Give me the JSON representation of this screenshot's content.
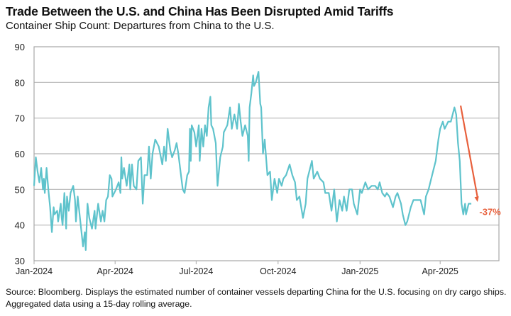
{
  "chart_data": {
    "type": "line",
    "title": "Trade Between the U.S. and China Has Been Disrupted Amid Tariffs",
    "subtitle": "Container Ship Count: Departures from China to the U.S.",
    "xlabel": "",
    "ylabel": "",
    "xlim": [
      "2024-01-01",
      "2025-06-06"
    ],
    "ylim": [
      30,
      90
    ],
    "yticks": [
      30,
      40,
      50,
      60,
      70,
      80,
      90
    ],
    "xticks": [
      {
        "date": "2024-01-01",
        "label": "Jan-2024"
      },
      {
        "date": "2024-04-01",
        "label": "Apr-2024"
      },
      {
        "date": "2024-07-01",
        "label": "Jul-2024"
      },
      {
        "date": "2024-10-01",
        "label": "Oct-2024"
      },
      {
        "date": "2025-01-01",
        "label": "Jan-2025"
      },
      {
        "date": "2025-04-01",
        "label": "Apr-2025"
      }
    ],
    "grid": "horizontal",
    "line_color": "#5fc3cc",
    "annotation": {
      "label": "-37%",
      "color": "#e8603c",
      "arrow_from": {
        "x": "2025-04-24",
        "y": 73.5
      },
      "arrow_to": {
        "x": "2025-05-13",
        "y": 46.5
      },
      "label_at": {
        "x": "2025-05-15",
        "y": 43.8
      }
    },
    "series": [
      {
        "x": [
          "2024-01-01",
          "2024-01-03",
          "2024-01-05",
          "2024-01-07",
          "2024-01-09",
          "2024-01-11",
          "2024-01-12",
          "2024-01-13",
          "2024-01-15",
          "2024-01-17",
          "2024-01-19",
          "2024-01-21",
          "2024-01-23",
          "2024-01-24",
          "2024-01-27",
          "2024-01-28",
          "2024-01-31",
          "2024-02-01",
          "2024-02-02",
          "2024-02-04",
          "2024-02-06",
          "2024-02-07",
          "2024-02-09",
          "2024-02-11",
          "2024-02-14",
          "2024-02-16",
          "2024-02-17",
          "2024-02-19",
          "2024-02-22",
          "2024-02-25",
          "2024-02-27",
          "2024-02-28",
          "2024-03-01",
          "2024-03-03",
          "2024-03-06",
          "2024-03-09",
          "2024-03-10",
          "2024-03-13",
          "2024-03-16",
          "2024-03-18",
          "2024-03-20",
          "2024-03-22",
          "2024-03-24",
          "2024-03-26",
          "2024-03-28",
          "2024-03-29",
          "2024-03-31",
          "2024-04-02",
          "2024-04-05",
          "2024-04-07",
          "2024-04-08",
          "2024-04-09",
          "2024-04-11",
          "2024-04-14",
          "2024-04-17",
          "2024-04-18",
          "2024-04-20",
          "2024-04-22",
          "2024-04-25",
          "2024-04-27",
          "2024-04-30",
          "2024-05-02",
          "2024-05-04",
          "2024-05-07",
          "2024-05-09",
          "2024-05-11",
          "2024-05-13",
          "2024-05-16",
          "2024-05-18",
          "2024-05-20",
          "2024-05-24",
          "2024-05-26",
          "2024-05-28",
          "2024-05-30",
          "2024-06-02",
          "2024-06-04",
          "2024-06-07",
          "2024-06-09",
          "2024-06-11",
          "2024-06-14",
          "2024-06-16",
          "2024-06-18",
          "2024-06-21",
          "2024-06-23",
          "2024-06-24",
          "2024-06-25",
          "2024-06-26",
          "2024-06-29",
          "2024-07-01",
          "2024-07-04",
          "2024-07-05",
          "2024-07-07",
          "2024-07-09",
          "2024-07-11",
          "2024-07-13",
          "2024-07-15",
          "2024-07-17",
          "2024-07-18",
          "2024-07-20",
          "2024-07-23",
          "2024-07-25",
          "2024-07-28",
          "2024-07-31",
          "2024-08-01",
          "2024-08-03",
          "2024-08-05",
          "2024-08-08",
          "2024-08-10",
          "2024-08-13",
          "2024-08-16",
          "2024-08-18",
          "2024-08-20",
          "2024-08-22",
          "2024-08-25",
          "2024-08-28",
          "2024-08-29",
          "2024-08-30",
          "2024-09-01",
          "2024-09-03",
          "2024-09-04",
          "2024-09-06",
          "2024-09-09",
          "2024-09-11",
          "2024-09-12",
          "2024-09-14",
          "2024-09-16",
          "2024-09-19",
          "2024-09-22",
          "2024-09-24",
          "2024-09-27",
          "2024-09-30",
          "2024-10-02",
          "2024-10-05",
          "2024-10-07",
          "2024-10-10",
          "2024-10-14",
          "2024-10-17",
          "2024-10-20",
          "2024-10-22",
          "2024-10-25",
          "2024-10-29",
          "2024-11-01",
          "2024-11-03",
          "2024-11-08",
          "2024-11-10",
          "2024-11-14",
          "2024-11-17",
          "2024-11-21",
          "2024-11-23",
          "2024-11-27",
          "2024-11-30",
          "2024-12-03",
          "2024-12-06",
          "2024-12-09",
          "2024-12-12",
          "2024-12-14",
          "2024-12-17",
          "2024-12-20",
          "2024-12-23",
          "2024-12-25",
          "2024-12-29",
          "2025-01-01",
          "2025-01-03",
          "2025-01-07",
          "2025-01-10",
          "2025-01-14",
          "2025-01-18",
          "2025-01-21",
          "2025-01-23",
          "2025-01-26",
          "2025-01-29",
          "2025-01-31",
          "2025-02-03",
          "2025-02-07",
          "2025-02-10",
          "2025-02-12",
          "2025-02-16",
          "2025-02-18",
          "2025-02-21",
          "2025-02-23",
          "2025-02-27",
          "2025-03-02",
          "2025-03-06",
          "2025-03-10",
          "2025-03-14",
          "2025-03-16",
          "2025-03-19",
          "2025-03-22",
          "2025-03-24",
          "2025-03-27",
          "2025-03-30",
          "2025-04-01",
          "2025-04-04",
          "2025-04-06",
          "2025-04-10",
          "2025-04-13",
          "2025-04-17",
          "2025-04-19",
          "2025-04-21",
          "2025-04-23",
          "2025-04-25",
          "2025-04-27",
          "2025-04-29",
          "2025-04-30",
          "2025-05-03",
          "2025-05-06"
        ],
        "y": [
          51,
          59,
          55,
          52,
          56,
          50,
          53,
          49,
          56,
          50,
          45,
          38,
          45,
          43,
          44,
          41,
          46,
          42,
          40,
          49,
          39,
          48,
          44,
          49,
          51,
          47,
          41,
          48,
          41,
          34,
          38,
          33,
          46,
          42,
          39,
          44,
          39,
          46,
          41,
          44,
          41,
          47,
          48,
          54,
          53,
          48,
          49,
          50,
          52,
          49,
          59,
          53,
          56,
          51,
          57,
          50,
          57,
          51,
          50,
          58,
          59,
          46,
          54,
          54,
          62,
          53,
          60,
          64,
          63,
          62,
          57,
          62,
          58,
          67,
          61,
          59,
          61,
          63,
          60,
          54,
          50,
          49,
          54,
          55,
          67,
          58,
          68,
          66,
          62,
          68,
          58,
          67,
          62,
          68,
          65,
          73,
          76,
          68,
          67,
          63,
          51,
          59,
          62,
          66,
          67,
          68,
          73,
          67,
          71,
          67,
          74,
          69,
          65,
          68,
          65,
          58,
          73,
          77,
          82,
          79,
          80,
          83,
          74,
          73,
          60,
          64,
          54,
          55,
          47,
          53,
          49,
          53,
          51,
          53,
          54,
          57,
          54,
          52,
          47,
          48,
          42,
          46,
          53,
          58,
          53,
          55,
          53,
          52,
          49,
          49,
          44,
          50,
          41,
          47,
          44,
          48,
          44,
          50,
          50,
          46,
          43,
          50,
          49,
          52,
          50,
          51,
          51,
          50,
          52,
          49,
          48,
          49,
          48,
          45,
          48,
          49,
          46,
          43,
          40,
          41,
          45,
          47,
          47,
          47,
          43,
          48,
          50,
          53,
          55,
          58,
          64,
          67,
          69,
          67,
          69,
          69,
          73,
          71,
          63,
          58,
          46,
          43,
          46,
          43,
          46,
          46
        ]
      }
    ]
  },
  "source": {
    "line1": "Source: Bloomberg. Displays the estimated number of container vessels departing China for the U.S. focusing on dry cargo ships.",
    "line2": "Aggregated data using a 15-day rolling average."
  }
}
